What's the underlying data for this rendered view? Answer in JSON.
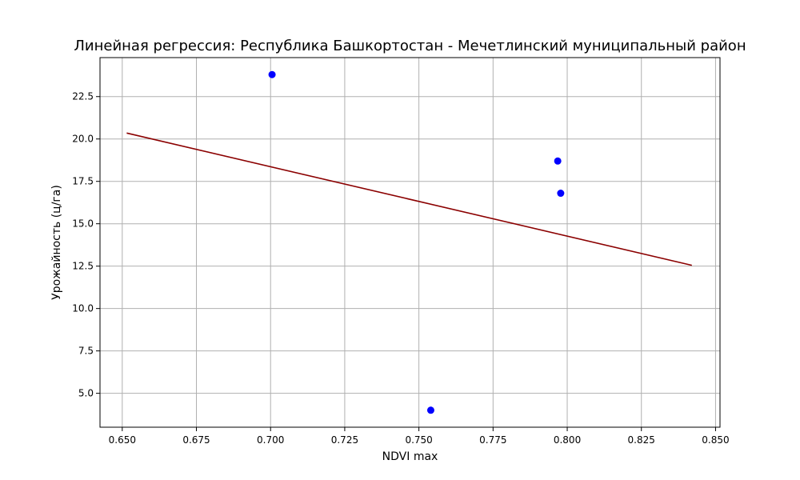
{
  "chart_data": {
    "type": "scatter",
    "title": "Линейная регрессия: Республика Башкортостан - Мечетлинский муниципальный район",
    "xlabel": "NDVI max",
    "ylabel": "Урожайность (ц/га)",
    "xlim": [
      0.6425,
      0.8515
    ],
    "ylim": [
      3.0,
      24.8
    ],
    "x_ticks": [
      0.65,
      0.675,
      0.7,
      0.725,
      0.75,
      0.775,
      0.8,
      0.825,
      0.85
    ],
    "x_tick_labels": [
      "0.650",
      "0.675",
      "0.700",
      "0.725",
      "0.750",
      "0.775",
      "0.800",
      "0.825",
      "0.850"
    ],
    "y_ticks": [
      5.0,
      7.5,
      10.0,
      12.5,
      15.0,
      17.5,
      20.0,
      22.5
    ],
    "y_tick_labels": [
      "5.0",
      "7.5",
      "10.0",
      "12.5",
      "15.0",
      "17.5",
      "20.0",
      "22.5"
    ],
    "grid": true,
    "series": [
      {
        "kind": "scatter",
        "color": "#0000ff",
        "x": [
          0.7005,
          0.754,
          0.7968,
          0.7978
        ],
        "y": [
          23.8,
          4.0,
          18.7,
          16.8
        ]
      },
      {
        "kind": "line",
        "color": "#8b0000",
        "x": [
          0.6515,
          0.842
        ],
        "y": [
          20.35,
          12.55
        ]
      }
    ]
  }
}
